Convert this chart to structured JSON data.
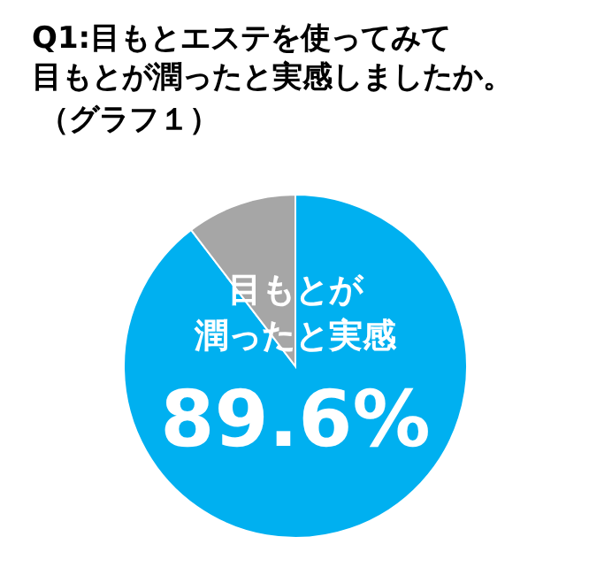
{
  "chart_data": {
    "type": "pie",
    "title": "Q1:目もとエステを使ってみて目もとが潤ったと実感しましたか。",
    "subtitle": "（グラフ１）",
    "categories": [
      "目もとが潤ったと実感",
      null
    ],
    "values": [
      89.6,
      10.4
    ],
    "colors": [
      "#00b0f0",
      "#a6a6a6"
    ],
    "value_labels": [
      "89.6%",
      null
    ]
  }
}
